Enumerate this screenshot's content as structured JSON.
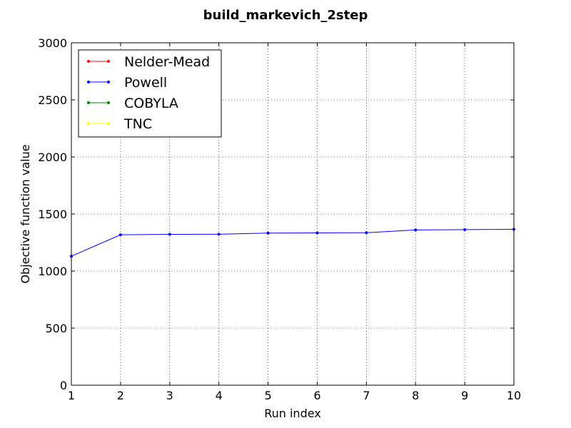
{
  "chart_data": {
    "type": "line",
    "title": "build_markevich_2step",
    "xlabel": "Run index",
    "ylabel": "Objective function value",
    "xlim": [
      1,
      10
    ],
    "ylim": [
      0,
      3000
    ],
    "xticks": [
      "1",
      "2",
      "3",
      "4",
      "5",
      "6",
      "7",
      "8",
      "9",
      "10"
    ],
    "yticks": [
      "0",
      "500",
      "1000",
      "1500",
      "2000",
      "2500",
      "3000"
    ],
    "grid": true,
    "legend_position": "top-left",
    "series": [
      {
        "name": "Nelder-Mead",
        "color": "#ff0000",
        "x": [],
        "values": []
      },
      {
        "name": "Powell",
        "color": "#0000ff",
        "x": [
          1,
          2,
          3,
          4,
          5,
          6,
          7,
          8,
          9,
          10
        ],
        "values": [
          1130,
          1318,
          1322,
          1323,
          1333,
          1334,
          1336,
          1360,
          1363,
          1366
        ]
      },
      {
        "name": "COBYLA",
        "color": "#008000",
        "x": [],
        "values": []
      },
      {
        "name": "TNC",
        "color": "#ffff00",
        "x": [],
        "values": []
      }
    ]
  }
}
